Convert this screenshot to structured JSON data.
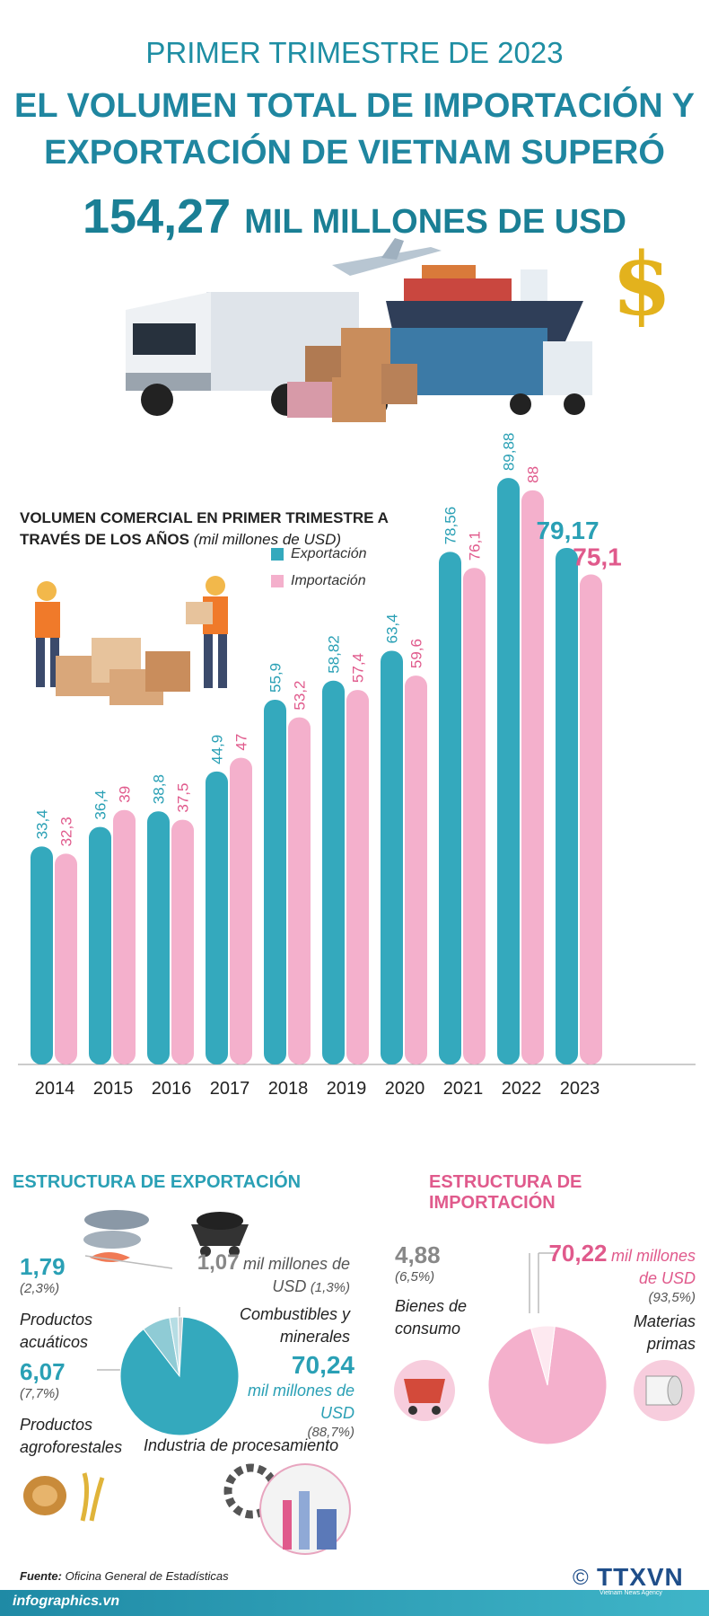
{
  "header": {
    "kicker": "PRIMER TRIMESTRE DE 2023",
    "headline_line1": "EL VOLUMEN TOTAL DE IMPORTACIÓN Y",
    "headline_line2": "EXPORTACIÓN DE VIETNAM SUPERÓ",
    "total_value": "154,27",
    "total_unit": "MIL MILLONES DE USD"
  },
  "colors": {
    "export": "#34a9bd",
    "import": "#f4b0cc",
    "export_label": "#2aa0b5",
    "import_label": "#e05a8c"
  },
  "chart_data": {
    "type": "bar",
    "title": "VOLUMEN COMERCIAL EN PRIMER TRIMESTRE A TRAVÉS DE LOS AÑOS",
    "unit": "(mil millones de USD)",
    "categories": [
      "2014",
      "2015",
      "2016",
      "2017",
      "2018",
      "2019",
      "2020",
      "2021",
      "2022",
      "2023"
    ],
    "series": [
      {
        "name": "Exportación",
        "values": [
          33.4,
          36.4,
          38.8,
          44.9,
          55.9,
          58.82,
          63.4,
          78.56,
          89.88,
          79.17
        ],
        "labels": [
          "33,4",
          "36,4",
          "38,8",
          "44,9",
          "55,9",
          "58,82",
          "63,4",
          "78,56",
          "89,88",
          "79,17"
        ]
      },
      {
        "name": "Importación",
        "values": [
          32.3,
          39,
          37.5,
          47,
          53.2,
          57.4,
          59.6,
          76.1,
          88,
          75.1
        ],
        "labels": [
          "32,3",
          "39",
          "37,5",
          "47",
          "53,2",
          "57,4",
          "59,6",
          "76,1",
          "88",
          "75,1"
        ]
      }
    ],
    "ylim": [
      0,
      95
    ]
  },
  "export_structure": {
    "title": "ESTRUCTURA DE EXPORTACIÓN",
    "slices": [
      {
        "value": "1,79",
        "pct": "(2,3%)",
        "label": "Productos acuáticos",
        "fraction": 0.023
      },
      {
        "value": "6,07",
        "pct": "(7,7%)",
        "label": "Productos agroforestales",
        "fraction": 0.077
      },
      {
        "value": "1,07",
        "unit": "mil millones de USD",
        "pct": "(1,3%)",
        "label": "Combustibles y minerales",
        "fraction": 0.013
      },
      {
        "value": "70,24",
        "unit": "mil millones de USD",
        "pct": "(88,7%)",
        "label": "Industria de procesamiento",
        "fraction": 0.887
      }
    ]
  },
  "import_structure": {
    "title": "ESTRUCTURA DE IMPORTACIÓN",
    "slices": [
      {
        "value": "4,88",
        "pct": "(6,5%)",
        "label": "Bienes de consumo",
        "fraction": 0.065
      },
      {
        "value": "70,22",
        "unit": "mil millones de USD",
        "pct": "(93,5%)",
        "label": "Materias primas",
        "fraction": 0.935
      }
    ]
  },
  "footer": {
    "source_label": "Fuente:",
    "source": "Oficina General de Estadísticas",
    "site": "infographics.vn",
    "brand": "TTXVN",
    "brand_sub": "Vietnam News Agency"
  }
}
